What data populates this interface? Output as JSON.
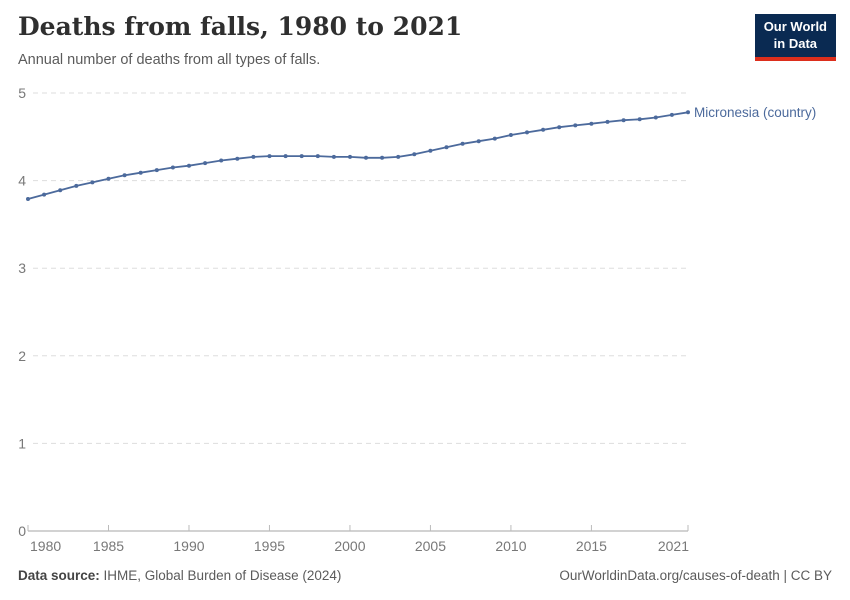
{
  "header": {
    "title": "Deaths from falls, 1980 to 2021",
    "subtitle": "Annual number of deaths from all types of falls."
  },
  "logo": {
    "line1": "Our World",
    "line2": "in Data",
    "bg_color": "#0a2a52",
    "accent_color": "#dc2e1c"
  },
  "chart_data": {
    "type": "line",
    "title": "Deaths from falls, 1980 to 2021",
    "xlabel": "",
    "ylabel": "",
    "x": [
      1980,
      1981,
      1982,
      1983,
      1984,
      1985,
      1986,
      1987,
      1988,
      1989,
      1990,
      1991,
      1992,
      1993,
      1994,
      1995,
      1996,
      1997,
      1998,
      1999,
      2000,
      2001,
      2002,
      2003,
      2004,
      2005,
      2006,
      2007,
      2008,
      2009,
      2010,
      2011,
      2012,
      2013,
      2014,
      2015,
      2016,
      2017,
      2018,
      2019,
      2020,
      2021
    ],
    "series": [
      {
        "name": "Micronesia (country)",
        "color": "#4c6a9c",
        "values": [
          3.79,
          3.84,
          3.89,
          3.94,
          3.98,
          4.02,
          4.06,
          4.09,
          4.12,
          4.15,
          4.17,
          4.2,
          4.23,
          4.25,
          4.27,
          4.28,
          4.28,
          4.28,
          4.28,
          4.27,
          4.27,
          4.26,
          4.26,
          4.27,
          4.3,
          4.34,
          4.38,
          4.42,
          4.45,
          4.48,
          4.52,
          4.55,
          4.58,
          4.61,
          4.63,
          4.65,
          4.67,
          4.69,
          4.7,
          4.72,
          4.75,
          4.78
        ]
      }
    ],
    "ylim": [
      0,
      5
    ],
    "yticks": [
      0,
      1,
      2,
      3,
      4,
      5
    ],
    "xticks": [
      1980,
      1985,
      1990,
      1995,
      2000,
      2005,
      2010,
      2015,
      2021
    ],
    "grid": "horizontal-dashed",
    "legend_position": "right-of-line-end",
    "colors": {
      "gridline": "#dddddd",
      "axis_line": "#a5a5a5",
      "tick_mark": "#bbbbbb",
      "tick_label": "#787878"
    }
  },
  "footer": {
    "source_label": "Data source:",
    "source_text": " IHME, Global Burden of Disease (2024)",
    "credit": "OurWorldinData.org/causes-of-death | CC BY"
  }
}
